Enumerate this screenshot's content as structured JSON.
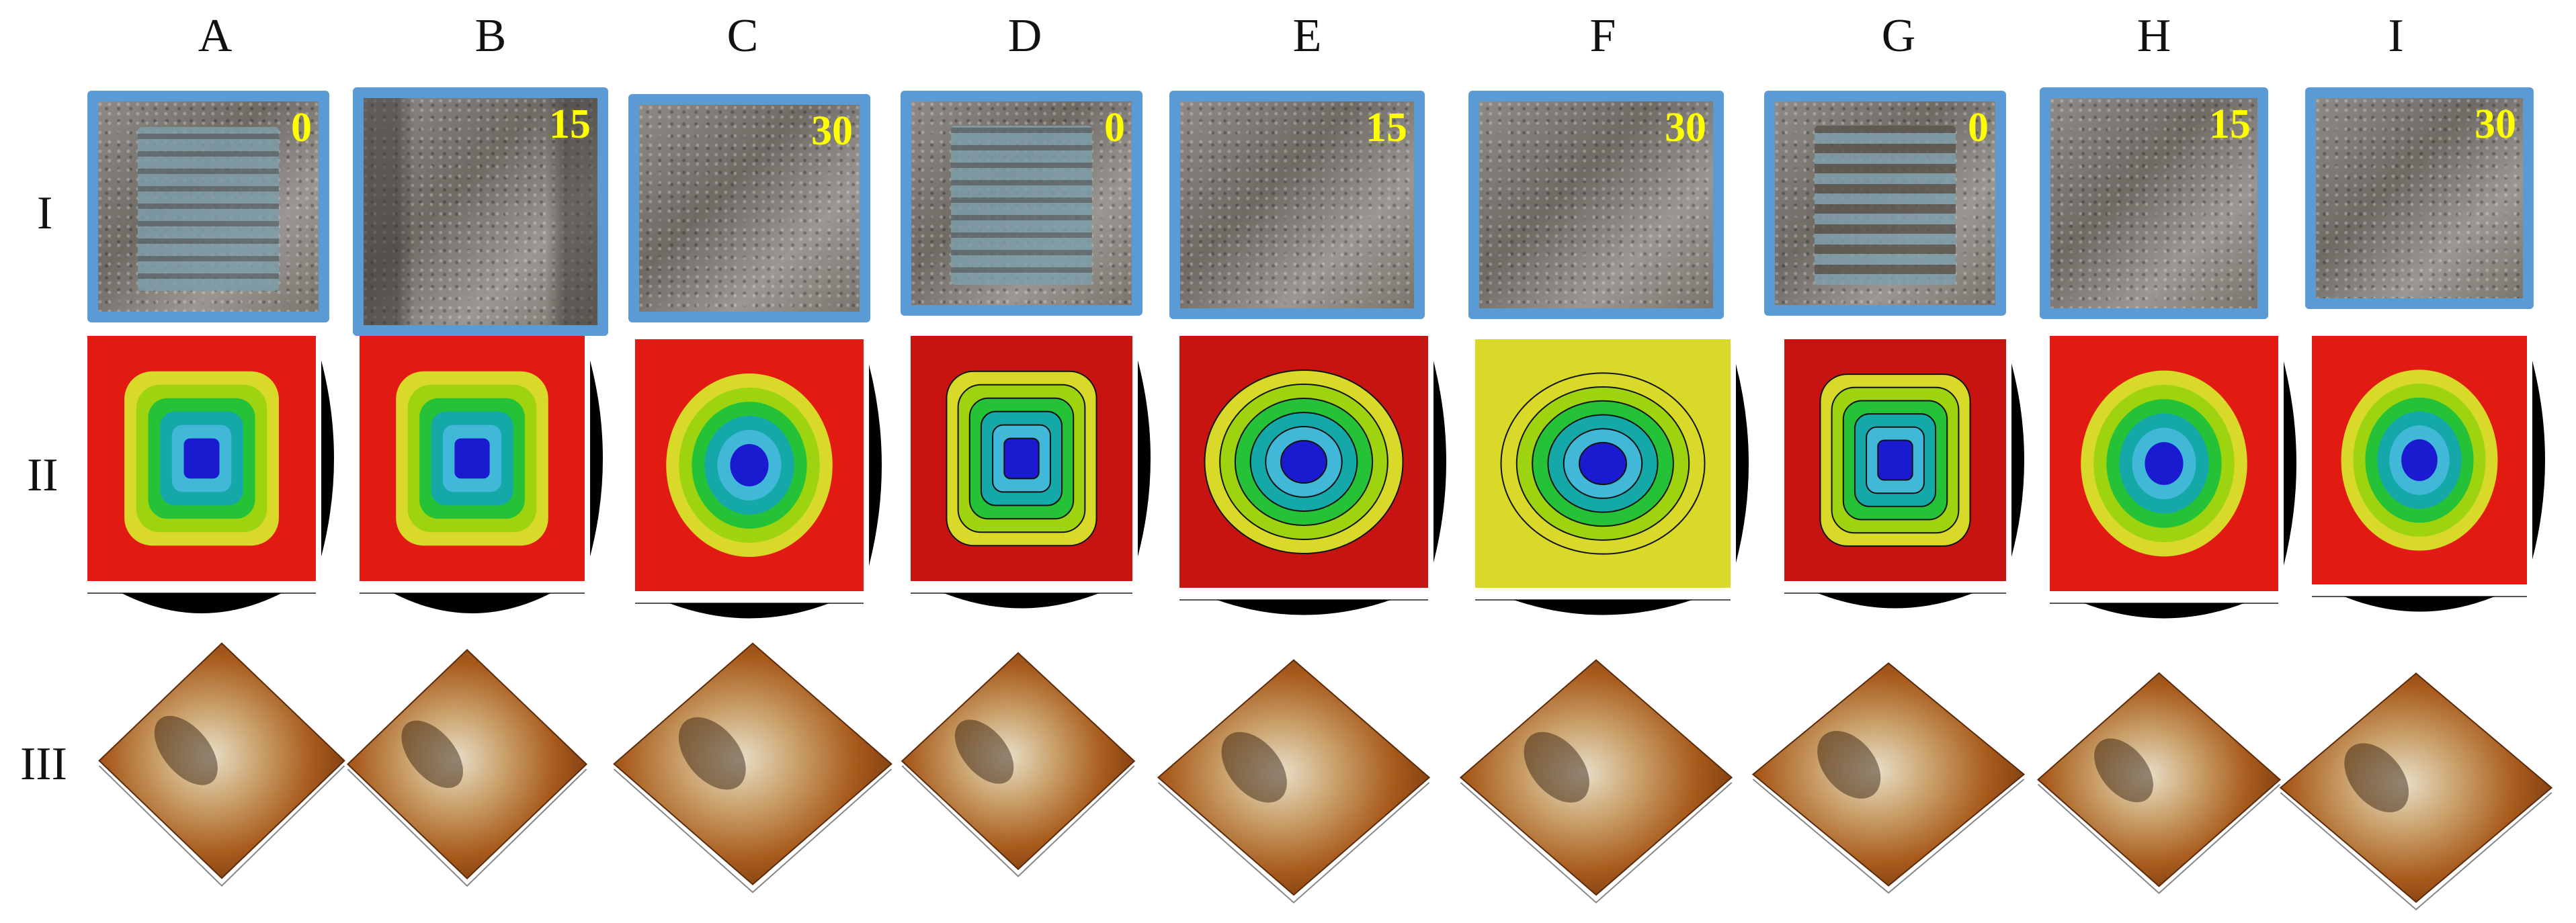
{
  "columns": [
    "A",
    "B",
    "C",
    "D",
    "E",
    "F",
    "G",
    "H",
    "I"
  ],
  "rows": [
    "I",
    "II",
    "III"
  ],
  "photo_badges": [
    "0",
    "15",
    "30",
    "0",
    "15",
    "30",
    "0",
    "15",
    "30"
  ],
  "colors": {
    "frame": "#5b9bd5",
    "badge": "#ffff00",
    "contour_levels": [
      "#e21b12",
      "#d9d92a",
      "#9ed40f",
      "#25c238",
      "#14a8a8",
      "#41b8d8",
      "#1a1ad0"
    ]
  },
  "panels": {
    "photos": [
      {
        "name": "tread-grid-photo",
        "tread": "grid"
      },
      {
        "name": "rut-photo",
        "tread": "rut"
      },
      {
        "name": "flat-photo",
        "tread": "none"
      },
      {
        "name": "tread-hex-photo",
        "tread": "grid"
      },
      {
        "name": "flat-photo",
        "tread": "none"
      },
      {
        "name": "flat-photo",
        "tread": "none"
      },
      {
        "name": "tread-chevron-photo",
        "tread": "chevron"
      },
      {
        "name": "flat-photo",
        "tread": "none"
      },
      {
        "name": "flat-photo",
        "tread": "none"
      }
    ]
  }
}
